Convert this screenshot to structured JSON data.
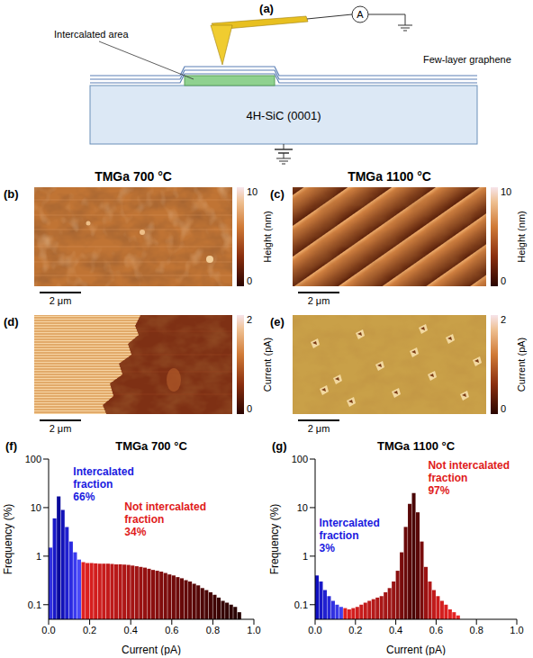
{
  "figure": {
    "a": {
      "label": "(a)",
      "intercalated": "Intercalated area",
      "graphene": "Few-layer graphene",
      "substrate": "4H-SiC (0001)",
      "meter": "A"
    },
    "columns": [
      "TMGa 700 °C",
      "TMGa 1100 °C"
    ],
    "image_rows": [
      {
        "color_bar": {
          "title": "Height (nm)",
          "range": [
            0,
            10
          ],
          "ticks": [
            0,
            10
          ]
        },
        "panels": [
          {
            "label": "(b)",
            "scale_bar": "2 μm"
          },
          {
            "label": "(c)",
            "scale_bar": "2 μm"
          }
        ]
      },
      {
        "color_bar": {
          "title": "Current (pA)",
          "range": [
            0,
            2
          ],
          "ticks": [
            0,
            2
          ]
        },
        "panels": [
          {
            "label": "(d)",
            "scale_bar": "2 μm"
          },
          {
            "label": "(e)",
            "scale_bar": "2 μm"
          }
        ]
      }
    ]
  },
  "chart_data": [
    {
      "type": "histogram",
      "panel": "(f)",
      "title": "TMGa 700 °C",
      "x_label": "Current (pA)",
      "y_label": "Frequency (%)",
      "bins": [
        0,
        0.02,
        0.04,
        0.06,
        0.08,
        0.1,
        0.12,
        0.14,
        0.16,
        0.18,
        0.2,
        0.22,
        0.24,
        0.26,
        0.28,
        0.3,
        0.32,
        0.34,
        0.36,
        0.38,
        0.4,
        0.42,
        0.44,
        0.46,
        0.48,
        0.5,
        0.52,
        0.54,
        0.56,
        0.58,
        0.6,
        0.62,
        0.64,
        0.66,
        0.68,
        0.7,
        0.72,
        0.74,
        0.76,
        0.78,
        0.8,
        0.82,
        0.84,
        0.86,
        0.88,
        0.9,
        0.92,
        0.94
      ],
      "values": [
        1.5,
        6,
        17,
        9,
        4,
        2,
        1.2,
        0.85,
        0.75,
        0.72,
        0.72,
        0.71,
        0.7,
        0.7,
        0.7,
        0.69,
        0.68,
        0.68,
        0.67,
        0.66,
        0.64,
        0.62,
        0.6,
        0.58,
        0.55,
        0.52,
        0.5,
        0.48,
        0.45,
        0.42,
        0.4,
        0.37,
        0.35,
        0.32,
        0.3,
        0.27,
        0.25,
        0.22,
        0.2,
        0.18,
        0.16,
        0.14,
        0.12,
        0.11,
        0.1,
        0.09,
        0.07
      ],
      "colors": [
        "#3030e0",
        "#1818c8",
        "#0a0a9a",
        "#1212b8",
        "#2020d0",
        "#2a2ae0",
        "#3a3af0",
        "#4848f8",
        "#e02020",
        "#db1f1f",
        "#d61e1e",
        "#d11d1d",
        "#cc1c1c",
        "#c71b1b",
        "#c21a1a",
        "#bd1919",
        "#b81818",
        "#b31717",
        "#ae1616",
        "#a91515",
        "#a41414",
        "#9f1313",
        "#9a1212",
        "#951111",
        "#901010",
        "#8b0f0f",
        "#860e0e",
        "#810d0d",
        "#7c0c0c",
        "#770b0b",
        "#720a0a",
        "#6d0a0a",
        "#680909",
        "#630909",
        "#5e0808",
        "#590808",
        "#540707",
        "#4f0707",
        "#4a0606",
        "#450606",
        "#400505",
        "#3b0505",
        "#360505",
        "#320404",
        "#2e0404",
        "#2a0404",
        "#260303"
      ],
      "xlim": [
        0,
        1
      ],
      "xticks": [
        {
          "value": 0,
          "label": "0.0"
        },
        0.2,
        0.4,
        0.6,
        0.8,
        {
          "value": 1,
          "label": "1.0"
        }
      ],
      "ylim": [
        0.05,
        100
      ],
      "yticks": [
        0.1,
        1,
        10,
        100
      ],
      "log": "y",
      "annotations": [
        {
          "text": "Intercalated fraction",
          "percent": "66%",
          "color": "#1a1ae0"
        },
        {
          "text": "Not intercalated fraction",
          "percent": "34%",
          "color": "#e01a1a"
        }
      ]
    },
    {
      "type": "histogram",
      "panel": "(g)",
      "title": "TMGa 1100 °C",
      "x_label": "Current (pA)",
      "y_label": "Frequency (%)",
      "bins": [
        0,
        0.02,
        0.04,
        0.06,
        0.08,
        0.1,
        0.12,
        0.14,
        0.16,
        0.18,
        0.2,
        0.22,
        0.24,
        0.26,
        0.28,
        0.3,
        0.32,
        0.34,
        0.36,
        0.38,
        0.4,
        0.42,
        0.44,
        0.46,
        0.48,
        0.5,
        0.52,
        0.54,
        0.56,
        0.58,
        0.6,
        0.62,
        0.64,
        0.66,
        0.68,
        0.7,
        0.72
      ],
      "values": [
        0.4,
        0.3,
        0.2,
        0.15,
        0.12,
        0.1,
        0.09,
        0.085,
        0.08,
        0.085,
        0.09,
        0.1,
        0.11,
        0.12,
        0.13,
        0.14,
        0.15,
        0.18,
        0.22,
        0.3,
        0.5,
        1.2,
        4,
        12,
        20,
        8,
        2,
        0.6,
        0.3,
        0.2,
        0.15,
        0.12,
        0.1,
        0.08,
        0.07,
        0.06
      ],
      "colors": [
        "#1010c0",
        "#1818c8",
        "#2020d0",
        "#2828d8",
        "#3030e0",
        "#3838e8",
        "#4040f0",
        "#e02020",
        "#da1f1f",
        "#d41e1e",
        "#ce1d1d",
        "#c81c1c",
        "#c21b1b",
        "#bc1a1a",
        "#b61919",
        "#b01818",
        "#aa1717",
        "#a41616",
        "#9e1515",
        "#981414",
        "#8a1010",
        "#7a0c0c",
        "#6a0a0a",
        "#5a0808",
        "#4a0606",
        "#5a0808",
        "#7a0c0c",
        "#9a1212",
        "#b01818",
        "#c01a1a",
        "#cc1c1c",
        "#d41e1e",
        "#da1f1f",
        "#e02020",
        "#e42424",
        "#e82828"
      ],
      "xlim": [
        0,
        1
      ],
      "xticks": [
        {
          "value": 0,
          "label": "0.0"
        },
        0.2,
        0.4,
        0.6,
        0.8,
        {
          "value": 1,
          "label": "1.0"
        }
      ],
      "ylim": [
        0.05,
        100
      ],
      "yticks": [
        0.1,
        1,
        10,
        100
      ],
      "log": "y",
      "annotations": [
        {
          "text": "Intercalated fraction",
          "percent": "3%",
          "color": "#1a1ae0"
        },
        {
          "text": "Not intercalated fraction",
          "percent": "97%",
          "color": "#e01a1a"
        }
      ]
    }
  ]
}
